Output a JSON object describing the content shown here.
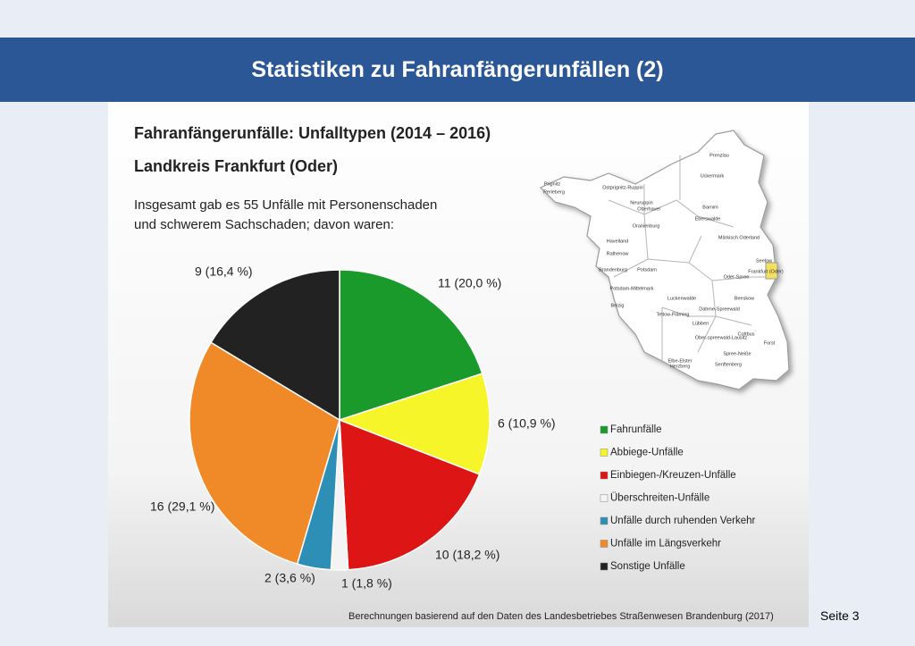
{
  "slide_title": "Statistiken zu Fahranfängerunfällen (2)",
  "page_label": "Seite 3",
  "chart_data": {
    "type": "pie",
    "title": "Fahranfängerunfälle: Unfalltypen (2014 – 2016)",
    "subtitle": "Landkreis Frankfurt (Oder)",
    "description": [
      "Insgesamt gab es 55 Unfälle mit Personenschaden",
      "und schwerem Sachschaden; davon waren:"
    ],
    "categories": [
      "Fahrunfälle",
      "Abbiege-Unfälle",
      "Einbiegen-/Kreuzen-Unfälle",
      "Überschreiten-Unfälle",
      "Unfälle durch ruhenden Verkehr",
      "Unfälle im Längsverkehr",
      "Sonstige Unfälle"
    ],
    "values": [
      11,
      6,
      10,
      1,
      2,
      16,
      9
    ],
    "value_labels": [
      "11 (20,0 %)",
      "6 (10,9 %)",
      "10 (18,2 %)",
      "1 (1,8 %)",
      "2 (3,6 %)",
      "16 (29,1 %)",
      "9 (16,4 %)"
    ],
    "colors": [
      "#1a9a2a",
      "#f5f52a",
      "#dd1515",
      "#f4f4f4",
      "#2d8fb5",
      "#f08a28",
      "#222222"
    ],
    "source": "Berechnungen basierend auf den Daten des Landesbetriebes Straßenwesen Brandenburg (2017)"
  },
  "map": {
    "labels": [
      "Prenzlau",
      "Prignitz",
      "Perleberg",
      "Ostprignitz-Ruppin",
      "Uckermark",
      "Neuruppin",
      "Oberhavel",
      "Barnim",
      "Eberswalde",
      "Oranienburg",
      "Havelland",
      "Märkisch Oderland",
      "Rathenow",
      "Seelow",
      "Brandenburg",
      "Potsdam",
      "Frankfurt (Oder)",
      "Potsdam-Mittelmark",
      "Oder-Spree",
      "Beeskow",
      "Belzig",
      "Luckenwalde",
      "Dahme-Spreewald",
      "Teltow-Fläming",
      "Lübben",
      "Cottbus",
      "Forst",
      "Ober-spreewald-Lausitz",
      "Spree-Neiße",
      "Elbe-Elster",
      "Herzberg",
      "Senftenberg"
    ]
  }
}
